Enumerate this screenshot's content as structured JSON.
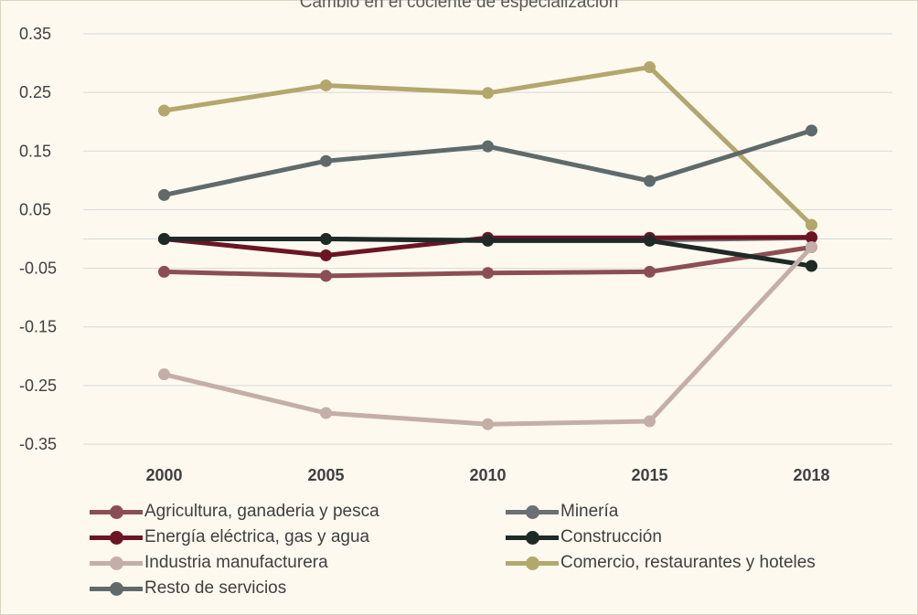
{
  "chart_data": {
    "type": "line",
    "title": "Cambio en el cociente de especialización",
    "x": [
      "2000",
      "2005",
      "2010",
      "2015",
      "2018"
    ],
    "ylim": [
      -0.35,
      0.35
    ],
    "yticks": [
      "0.35",
      "0.25",
      "0.15",
      "0.05",
      "-0.05",
      "-0.15",
      "-0.25",
      "-0.35"
    ],
    "grid": true,
    "legend_position": "bottom",
    "series": [
      {
        "name": "Agricultura, ganaderia y pesca",
        "color": "#8c4e55",
        "values": [
          -0.056,
          -0.063,
          -0.058,
          -0.056,
          -0.014
        ]
      },
      {
        "name": "Minería",
        "color": "#6d7072",
        "values": [
          0.0,
          0.0,
          -0.002,
          -0.002,
          0.002
        ]
      },
      {
        "name": "Energía eléctrica, gas y agua",
        "color": "#6b1524",
        "values": [
          0.0,
          -0.028,
          0.002,
          0.002,
          0.003
        ]
      },
      {
        "name": "Construcción",
        "color": "#1e2a26",
        "values": [
          0.0,
          0.0,
          -0.003,
          -0.003,
          -0.046
        ]
      },
      {
        "name": "Industria manufacturera",
        "color": "#c5aea8",
        "values": [
          -0.231,
          -0.297,
          -0.316,
          -0.311,
          -0.014
        ]
      },
      {
        "name": "Comercio, restaurantes y hoteles",
        "color": "#b3a76e",
        "values": [
          0.219,
          0.262,
          0.249,
          0.293,
          0.024
        ]
      },
      {
        "name": "Resto de servicios",
        "color": "#5f6b6a",
        "values": [
          0.075,
          0.133,
          0.158,
          0.099,
          0.185
        ]
      }
    ]
  }
}
